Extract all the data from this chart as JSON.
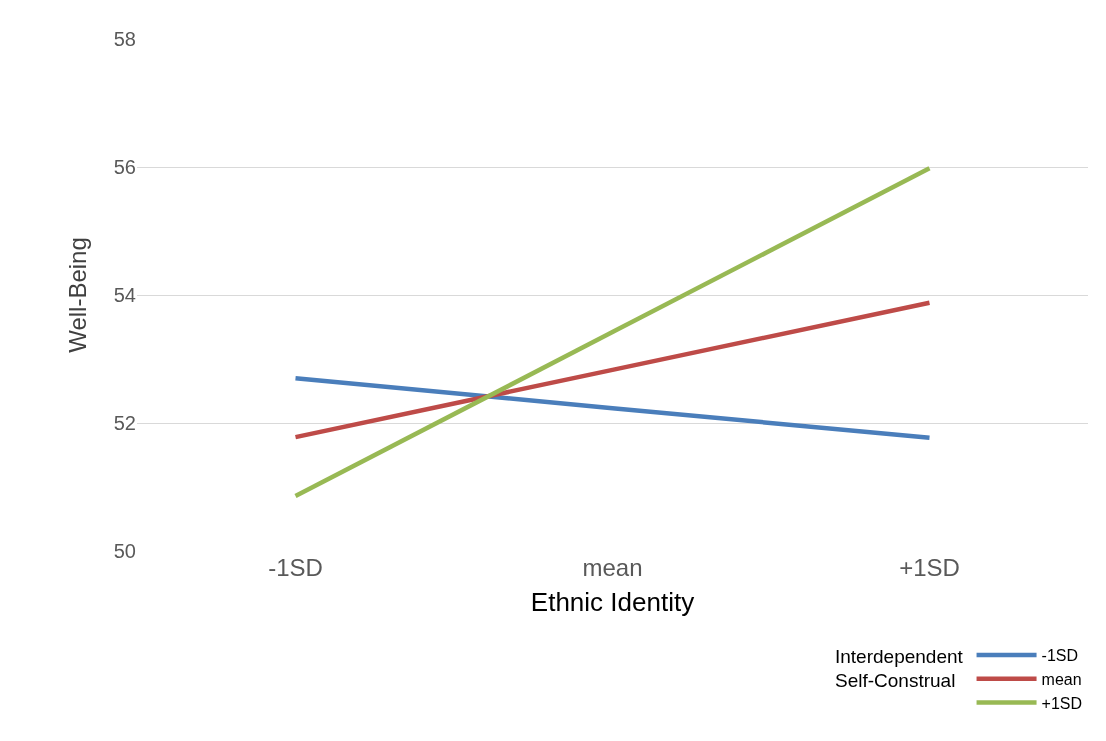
{
  "chart_data": {
    "type": "line",
    "xlabel": "Ethnic Identity",
    "ylabel": "Well-Being",
    "legend_title": "Interdependent Self-Construal",
    "categories": [
      "-1SD",
      "mean",
      "+1SD"
    ],
    "series": [
      {
        "name": "-1SD",
        "color": "#4a7ebb",
        "values": [
          52.7,
          52.23,
          51.77
        ]
      },
      {
        "name": "mean",
        "color": "#be4b48",
        "values": [
          51.78,
          52.83,
          53.88
        ]
      },
      {
        "name": "+1SD",
        "color": "#98b954",
        "values": [
          50.86,
          53.42,
          55.98
        ]
      }
    ],
    "ylim": [
      50,
      58
    ],
    "yticks": [
      50,
      52,
      54,
      56,
      58
    ],
    "grid": "y",
    "legend": "bottom right",
    "marker": "none",
    "line_style": "solid"
  }
}
